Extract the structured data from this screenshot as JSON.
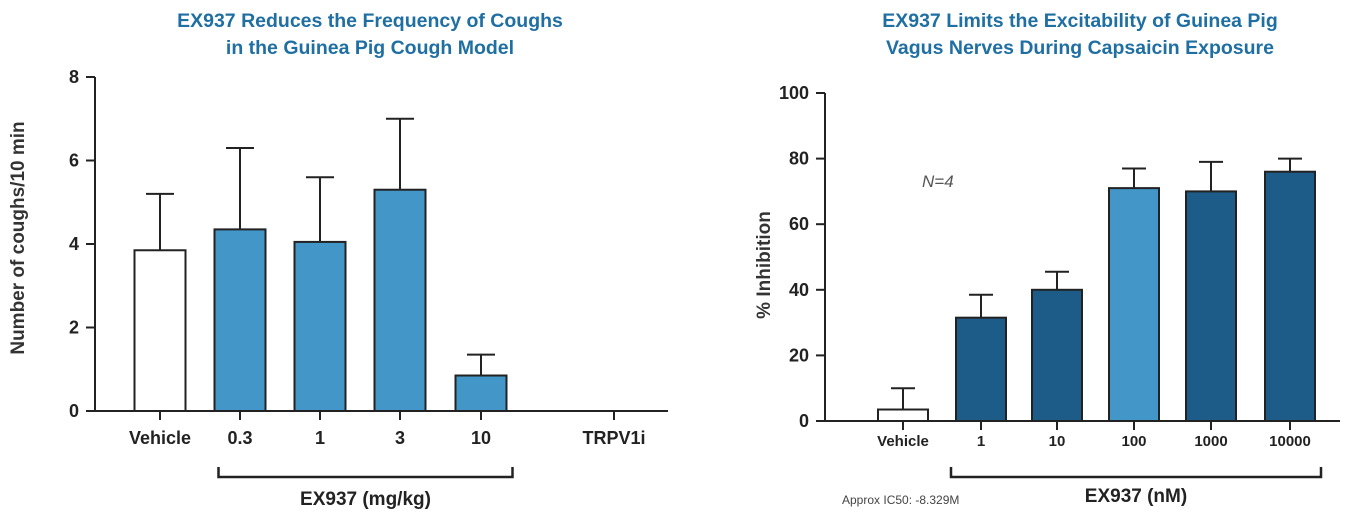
{
  "chart_data": [
    {
      "type": "bar",
      "title_lines": [
        "EX937 Reduces the Frequency of Coughs",
        "in the Guinea Pig Cough Model"
      ],
      "xlabel": "",
      "ylabel": "Number of coughs/10 min",
      "ylim": [
        0,
        8
      ],
      "yticks": [
        0,
        2,
        4,
        6,
        8
      ],
      "categories": [
        "Vehicle",
        "0.3",
        "1",
        "3",
        "10",
        "TRPV1i"
      ],
      "values": [
        3.85,
        4.35,
        4.05,
        5.3,
        0.85,
        0
      ],
      "error_upper": [
        5.2,
        6.3,
        5.6,
        7.0,
        1.35,
        null
      ],
      "bar_fill": [
        "#ffffff",
        "#4396c8",
        "#4396c8",
        "#4396c8",
        "#4396c8",
        "none"
      ],
      "group_bracket": {
        "label": "EX937 (mg/kg)",
        "from_index": 1,
        "to_index": 4
      },
      "grid": false,
      "legend": "none"
    },
    {
      "type": "bar",
      "title_lines": [
        "EX937 Limits the Excitability of Guinea Pig",
        "Vagus Nerves During Capsaicin Exposure"
      ],
      "xlabel": "",
      "ylabel": "% Inhibition",
      "ylim": [
        0,
        100
      ],
      "yticks": [
        0,
        20,
        40,
        60,
        80,
        100
      ],
      "categories": [
        "Vehicle",
        "1",
        "10",
        "100",
        "1000",
        "10000"
      ],
      "values": [
        3.5,
        31.5,
        40,
        71,
        70,
        76
      ],
      "error_upper": [
        10,
        38.5,
        45.5,
        77,
        79,
        80
      ],
      "bar_fill": [
        "#ffffff",
        "#1d5c88",
        "#1d5c88",
        "#4396c8",
        "#1d5c88",
        "#1d5c88"
      ],
      "annotation": "N=4",
      "group_bracket": {
        "label": "EX937 (nM)",
        "from_index": 1,
        "to_index": 5
      },
      "footnote": "Approx IC50: -8.329M",
      "grid": false,
      "legend": "none"
    }
  ]
}
